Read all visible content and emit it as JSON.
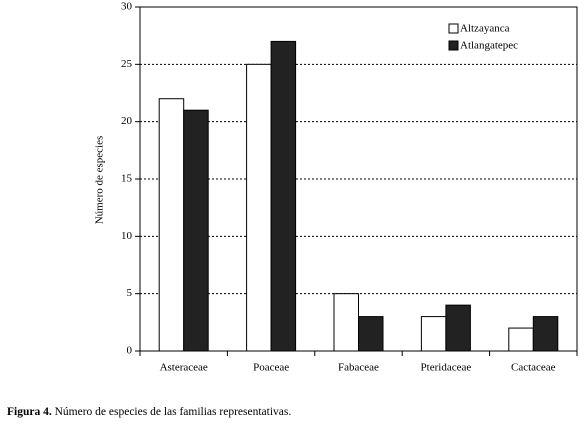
{
  "chart_data": {
    "type": "bar",
    "y_label": "Número de especies",
    "categories": [
      "Asteraceae",
      "Poaceae",
      "Fabaceae",
      "Pteridaceae",
      "Cactaceae"
    ],
    "series": [
      {
        "name": "Altzayanca",
        "color": "#ffffff",
        "values": [
          22,
          25,
          5,
          3,
          2
        ]
      },
      {
        "name": "Atlangatepec",
        "color": "#222222",
        "values": [
          21,
          27,
          3,
          4,
          3
        ]
      }
    ],
    "ylim": [
      0,
      30
    ],
    "yticks": [
      0,
      5,
      10,
      15,
      20,
      25,
      30
    ],
    "grid": true,
    "legend": "top-right"
  },
  "figure_caption": {
    "label": "Figura 4.",
    "text": "Número de especies de las familias representativas."
  }
}
